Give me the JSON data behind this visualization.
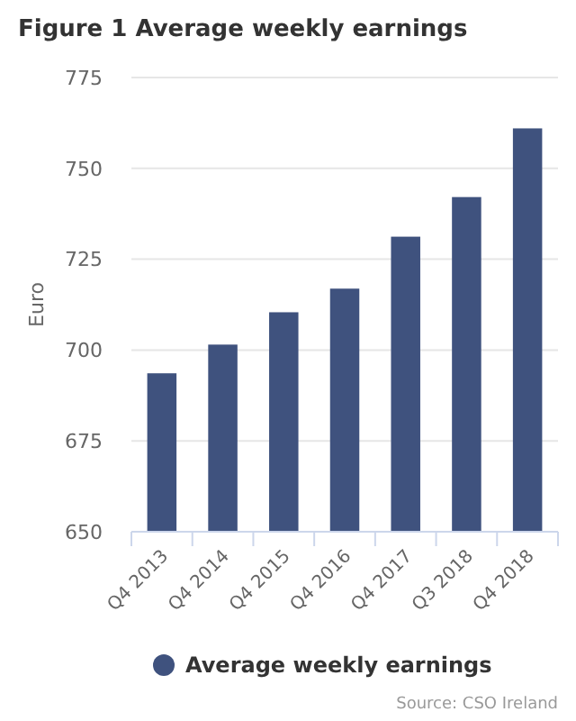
{
  "chart_data": {
    "type": "bar",
    "title": "Figure 1 Average weekly earnings",
    "ylabel": "Euro",
    "categories": [
      "Q4 2013",
      "Q4 2014",
      "Q4 2015",
      "Q4 2016",
      "Q4 2017",
      "Q3 2018",
      "Q4 2018"
    ],
    "series": [
      {
        "name": "Average weekly earnings",
        "color": "#3f527e",
        "values": [
          693.6,
          701.5,
          710.4,
          716.9,
          731.2,
          742.1,
          761.0
        ]
      }
    ],
    "ylim": [
      650,
      775
    ],
    "yticks": [
      650,
      675,
      700,
      725,
      750,
      775
    ],
    "grid": "y",
    "legend": "bottom",
    "annotations": [
      "Source: CSO Ireland"
    ]
  }
}
